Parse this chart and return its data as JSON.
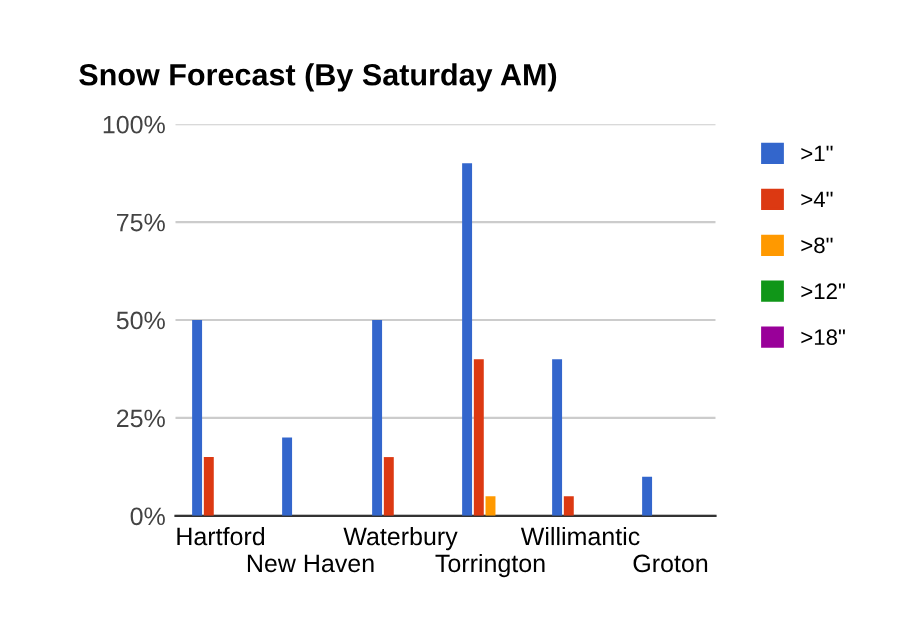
{
  "chart_data": {
    "type": "bar",
    "title": "Snow Forecast (By Saturday AM)",
    "categories": [
      "Hartford",
      "New Haven",
      "Waterbury",
      "Torrington",
      "Willimantic",
      "Groton"
    ],
    "series": [
      {
        "name": ">1\"",
        "color": "#3366cc",
        "values": [
          50,
          20,
          50,
          90,
          40,
          10
        ]
      },
      {
        "name": ">4\"",
        "color": "#dc3912",
        "values": [
          15,
          0,
          15,
          40,
          5,
          0
        ]
      },
      {
        "name": ">8\"",
        "color": "#ff9900",
        "values": [
          0,
          0,
          0,
          5,
          0,
          0
        ]
      },
      {
        "name": ">12\"",
        "color": "#109618",
        "values": [
          0,
          0,
          0,
          0,
          0,
          0
        ]
      },
      {
        "name": ">18\"",
        "color": "#990099",
        "values": [
          0,
          0,
          0,
          0,
          0,
          0
        ]
      }
    ],
    "ylim": [
      0,
      100
    ],
    "yticks": [
      {
        "value": 0,
        "label": "0%"
      },
      {
        "value": 25,
        "label": "25%"
      },
      {
        "value": 50,
        "label": "50%"
      },
      {
        "value": 75,
        "label": "75%"
      },
      {
        "value": 100,
        "label": "100%"
      }
    ],
    "grid": "y",
    "legend": "right"
  }
}
